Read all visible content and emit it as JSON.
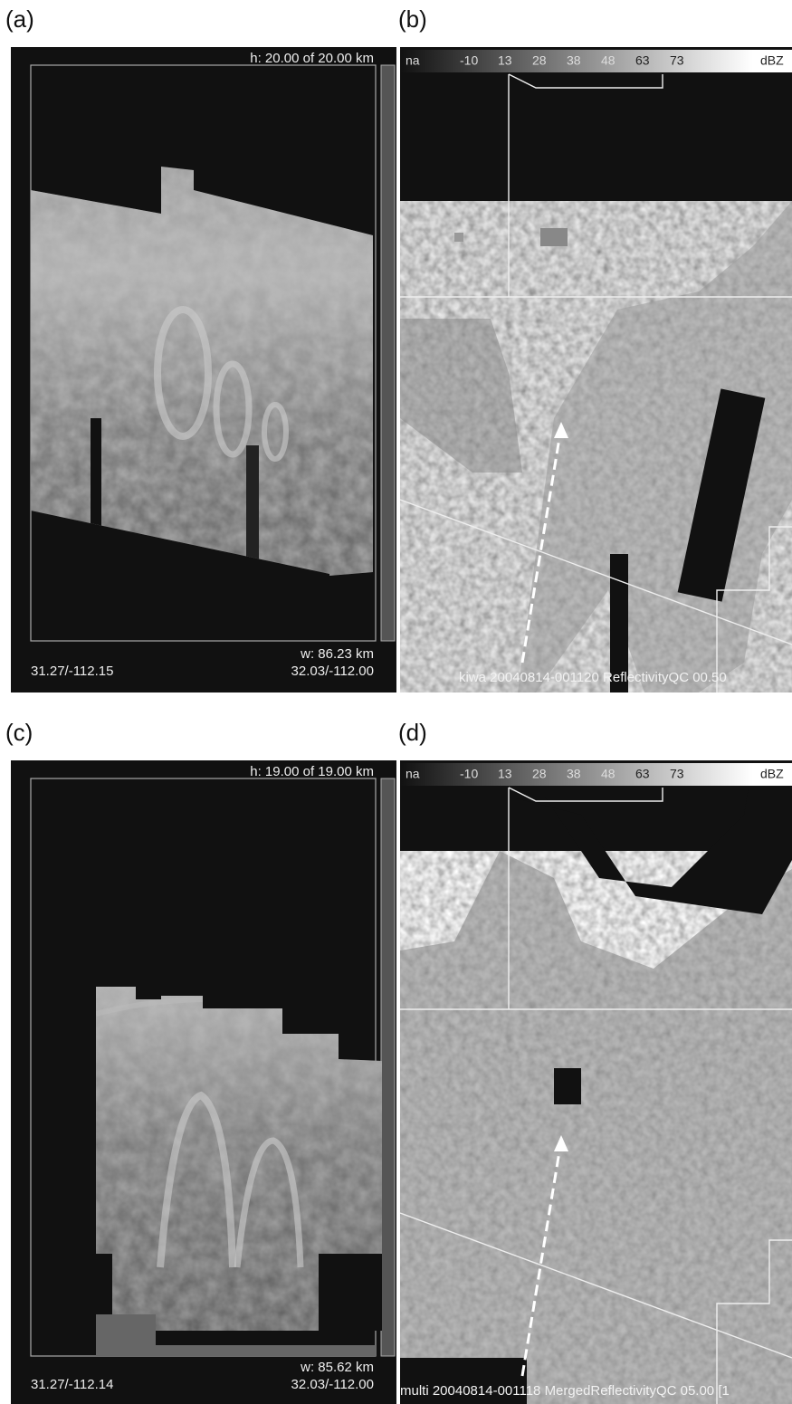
{
  "panels": [
    {
      "label": "(a)",
      "height_text": "h:  20.00 of 20.00 km",
      "width_text": "w:  86.23 km",
      "left_coord": "31.27/-112.15",
      "right_coord": "32.03/-112.00"
    },
    {
      "label": "(b)",
      "colorbar": [
        "na",
        "-10",
        "13",
        "28",
        "38",
        "48",
        "63",
        "73",
        "dBZ"
      ],
      "caption": "kiwa  20040814-001120 ReflectivityQC 00.50"
    },
    {
      "label": "(c)",
      "height_text": "h:  19.00 of 19.00 km",
      "width_text": "w:  85.62 km",
      "left_coord": "31.27/-112.14",
      "right_coord": "32.03/-112.00"
    },
    {
      "label": "(d)",
      "colorbar": [
        "na",
        "-10",
        "13",
        "28",
        "38",
        "48",
        "63",
        "73",
        "dBZ"
      ],
      "caption": "multi  20040814-001118 MergedReflectivityQC 05.00 [1"
    }
  ]
}
